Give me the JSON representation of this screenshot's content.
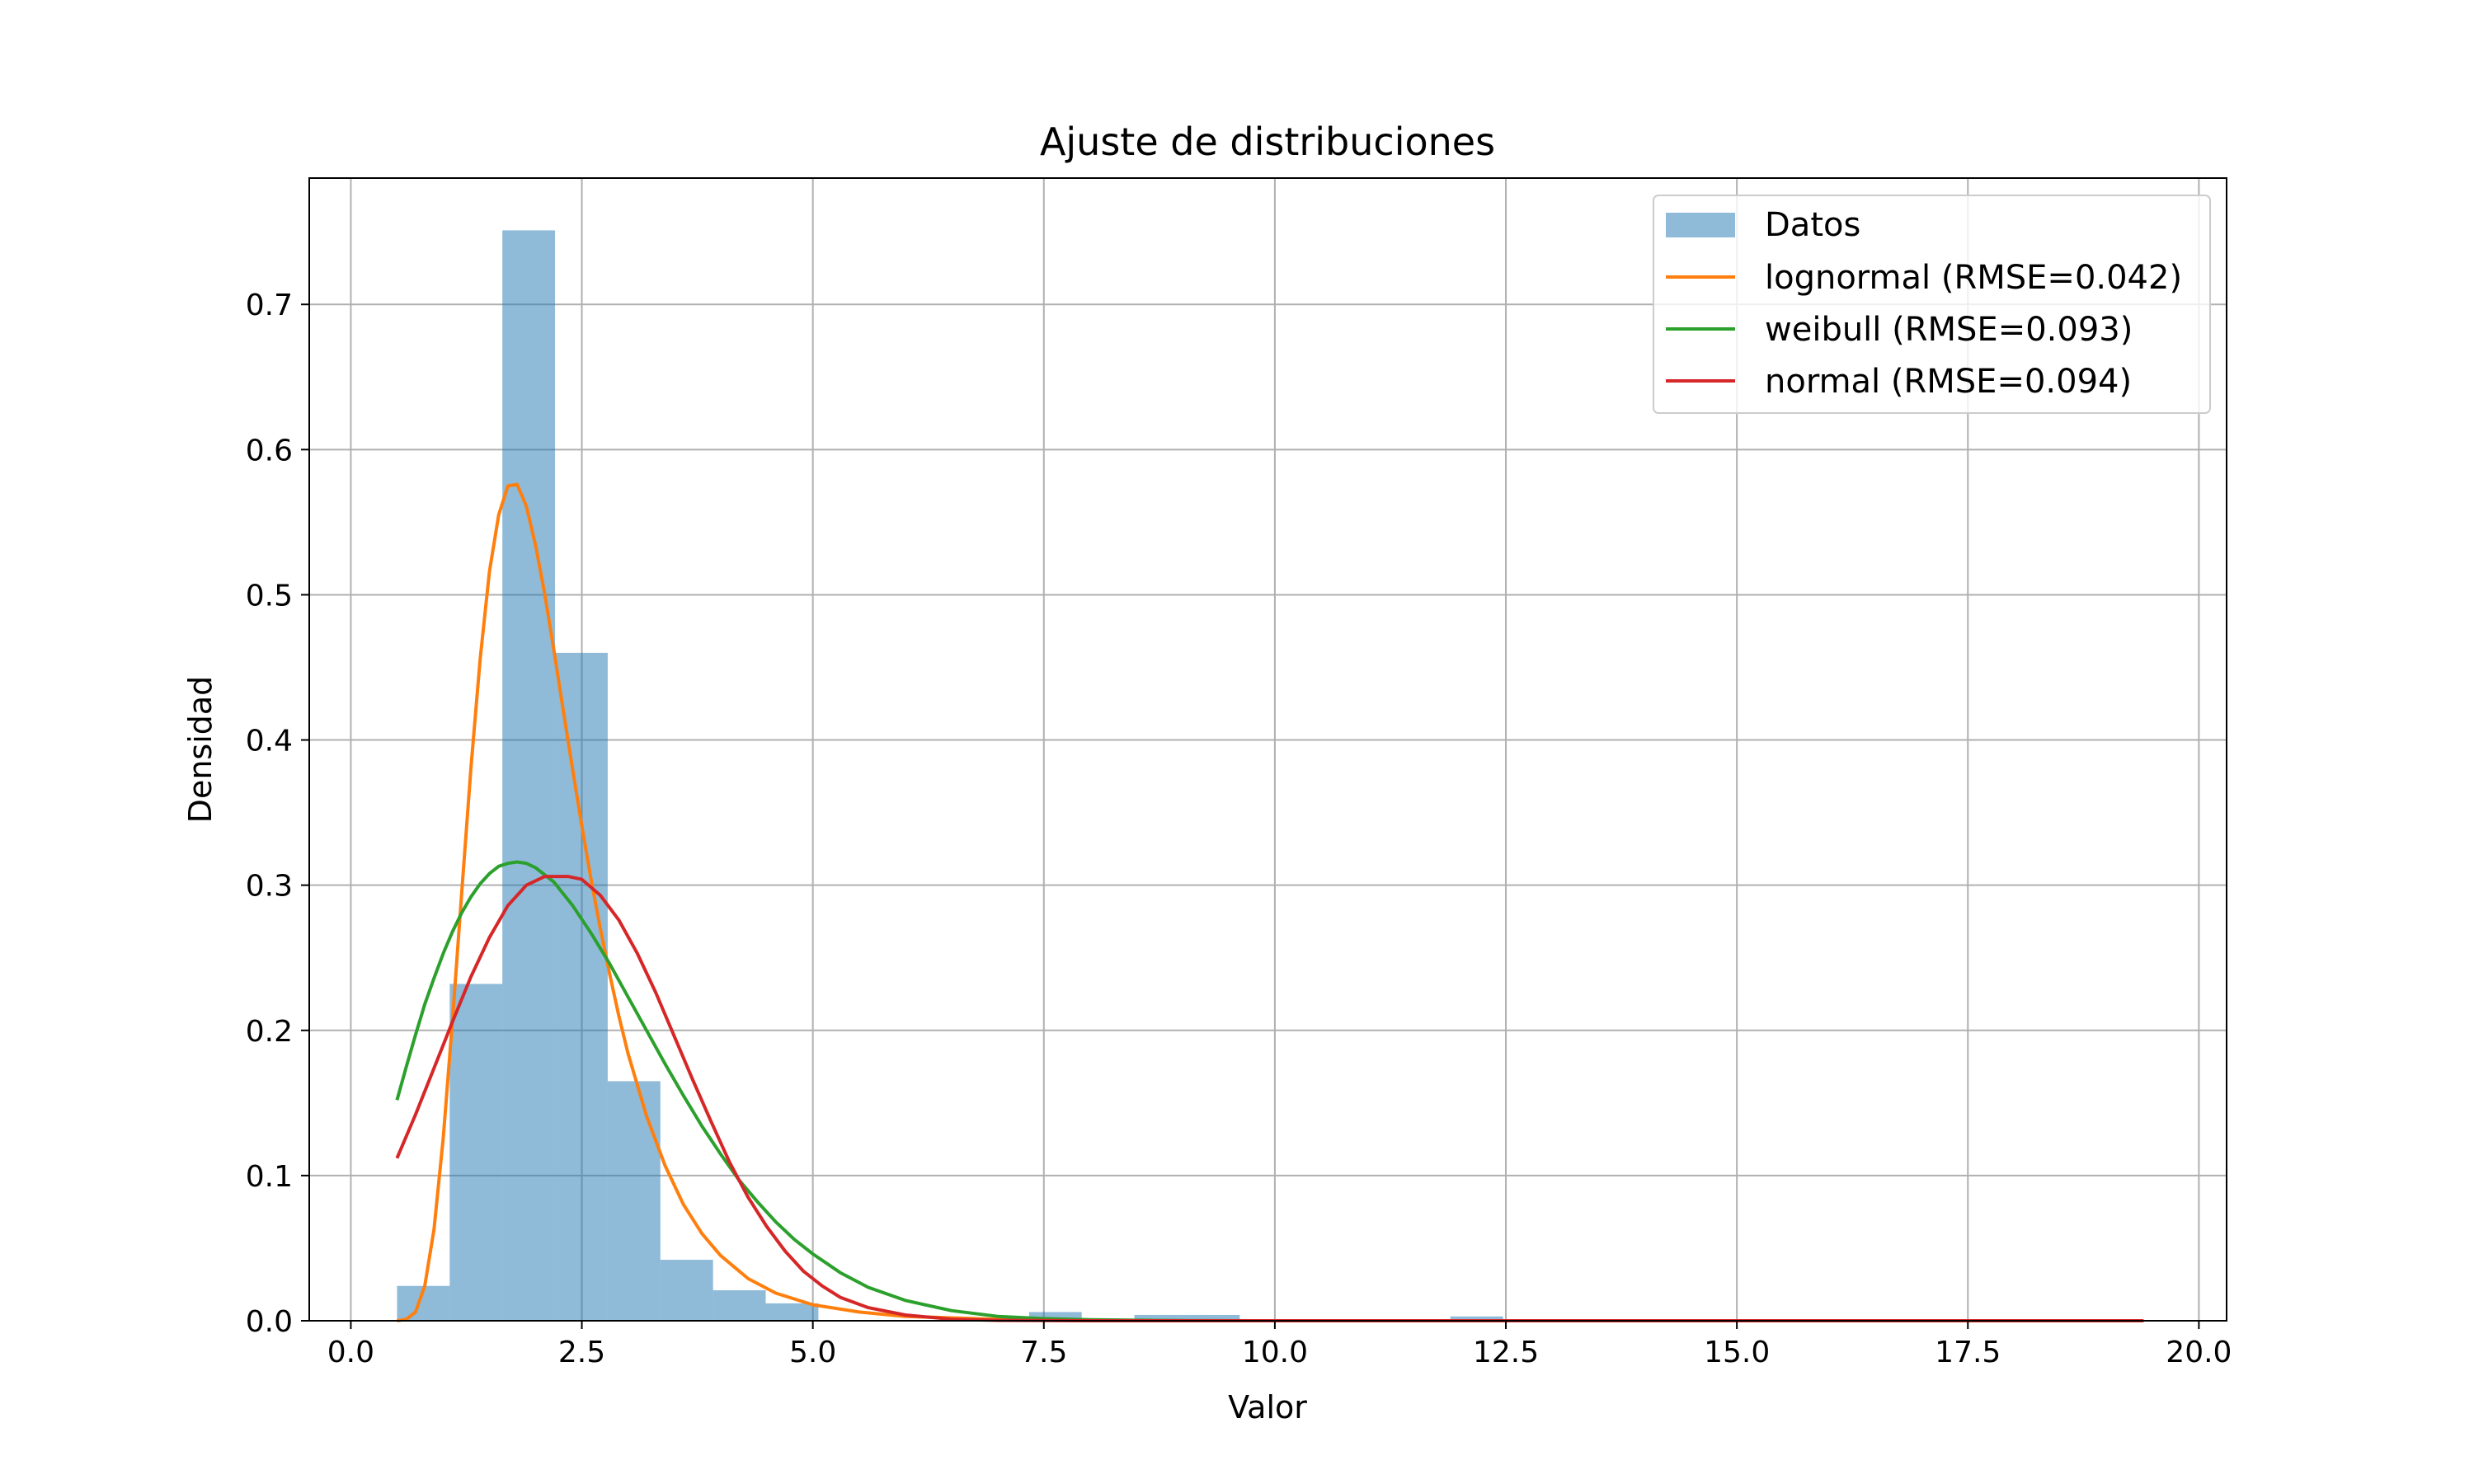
{
  "chart_data": {
    "type": "histogram",
    "title": "Ajuste de distribuciones",
    "xlabel": "Valor",
    "ylabel": "Densidad",
    "xlim": [
      -0.45,
      20.3
    ],
    "ylim": [
      0,
      0.787
    ],
    "grid": true,
    "legend_position": "top-right",
    "x_ticks": [
      0.0,
      2.5,
      5.0,
      7.5,
      10.0,
      12.5,
      15.0,
      17.5,
      20.0
    ],
    "x_tick_labels": [
      "0.0",
      "2.5",
      "5.0",
      "7.5",
      "10.0",
      "12.5",
      "15.0",
      "17.5",
      "20.0"
    ],
    "y_ticks": [
      0.0,
      0.1,
      0.2,
      0.3,
      0.4,
      0.5,
      0.6,
      0.7
    ],
    "y_tick_labels": [
      "0.0",
      "0.1",
      "0.2",
      "0.3",
      "0.4",
      "0.5",
      "0.6",
      "0.7"
    ],
    "histogram": {
      "name": "Datos",
      "color": "#1f77b4",
      "bin_start": 0.5,
      "bin_width": 0.57,
      "densities": [
        0.024,
        0.232,
        0.751,
        0.46,
        0.165,
        0.042,
        0.021,
        0.012,
        0,
        0,
        0,
        0,
        0.006,
        0,
        0.004,
        0.004,
        0,
        0,
        0,
        0,
        0.003,
        0,
        0,
        0,
        0,
        0,
        0,
        0,
        0,
        0,
        0,
        0,
        0,
        0
      ]
    },
    "series": [
      {
        "name": "lognormal (RMSE=0.042)",
        "color": "#ff7f0e",
        "x": [
          0.5,
          0.6,
          0.7,
          0.8,
          0.9,
          1.0,
          1.1,
          1.2,
          1.3,
          1.4,
          1.5,
          1.6,
          1.7,
          1.8,
          1.9,
          2.0,
          2.1,
          2.2,
          2.3,
          2.4,
          2.5,
          2.6,
          2.7,
          2.8,
          2.9,
          3.0,
          3.2,
          3.4,
          3.6,
          3.8,
          4.0,
          4.3,
          4.6,
          5.0,
          5.5,
          6.0,
          6.5,
          7.0,
          8.0,
          10.0,
          13.0,
          16.0,
          19.4
        ],
        "y": [
          0.0,
          0.001,
          0.006,
          0.024,
          0.063,
          0.126,
          0.207,
          0.295,
          0.381,
          0.456,
          0.516,
          0.555,
          0.575,
          0.576,
          0.561,
          0.534,
          0.5,
          0.461,
          0.42,
          0.38,
          0.341,
          0.304,
          0.27,
          0.239,
          0.21,
          0.184,
          0.141,
          0.107,
          0.08,
          0.06,
          0.045,
          0.029,
          0.019,
          0.011,
          0.006,
          0.003,
          0.002,
          0.001,
          0.0,
          0.0,
          0.0,
          0.0,
          0.0
        ]
      },
      {
        "name": "weibull (RMSE=0.093)",
        "color": "#2ca02c",
        "x": [
          0.5,
          0.6,
          0.7,
          0.8,
          0.9,
          1.0,
          1.1,
          1.2,
          1.3,
          1.4,
          1.5,
          1.6,
          1.7,
          1.8,
          1.9,
          2.0,
          2.2,
          2.4,
          2.6,
          2.8,
          3.0,
          3.2,
          3.4,
          3.6,
          3.8,
          4.0,
          4.2,
          4.4,
          4.6,
          4.8,
          5.0,
          5.3,
          5.6,
          6.0,
          6.5,
          7.0,
          7.5,
          8.0,
          9.0,
          10.0,
          13.0,
          16.0,
          19.4
        ],
        "y": [
          0.152,
          0.175,
          0.197,
          0.218,
          0.236,
          0.253,
          0.268,
          0.281,
          0.292,
          0.301,
          0.308,
          0.313,
          0.315,
          0.316,
          0.315,
          0.312,
          0.302,
          0.286,
          0.267,
          0.246,
          0.223,
          0.2,
          0.177,
          0.155,
          0.134,
          0.115,
          0.097,
          0.082,
          0.068,
          0.056,
          0.046,
          0.033,
          0.023,
          0.014,
          0.007,
          0.003,
          0.0015,
          0.0007,
          0.0001,
          0.0,
          0.0,
          0.0,
          0.0
        ]
      },
      {
        "name": "normal (RMSE=0.094)",
        "color": "#d62728",
        "x": [
          0.5,
          0.7,
          0.9,
          1.1,
          1.3,
          1.5,
          1.7,
          1.9,
          2.1,
          2.3,
          2.35,
          2.5,
          2.7,
          2.9,
          3.1,
          3.3,
          3.5,
          3.7,
          3.9,
          4.1,
          4.3,
          4.5,
          4.7,
          4.9,
          5.1,
          5.3,
          5.6,
          6.0,
          6.5,
          7.0,
          8.0,
          10.0,
          13.0,
          16.0,
          19.4
        ],
        "y": [
          0.112,
          0.142,
          0.174,
          0.206,
          0.237,
          0.264,
          0.286,
          0.3,
          0.306,
          0.306,
          0.306,
          0.304,
          0.293,
          0.276,
          0.253,
          0.226,
          0.196,
          0.166,
          0.137,
          0.109,
          0.085,
          0.065,
          0.048,
          0.034,
          0.024,
          0.016,
          0.009,
          0.004,
          0.001,
          0.0003,
          0.0,
          0.0,
          0.0,
          0.0,
          0.0
        ]
      }
    ]
  }
}
